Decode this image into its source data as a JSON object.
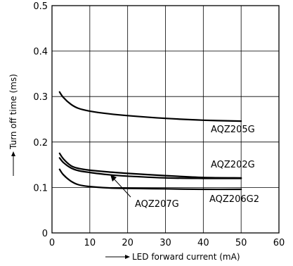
{
  "chart_data": {
    "type": "line",
    "title": "",
    "xlabel": "LED forward current (mA)",
    "ylabel": "Turn off time (ms)",
    "xlim": [
      0,
      60
    ],
    "ylim": [
      0,
      0.5
    ],
    "x_ticks": [
      "0",
      "10",
      "20",
      "30",
      "40",
      "50",
      "60"
    ],
    "y_ticks": [
      "0",
      "0.1",
      "0.2",
      "0.3",
      "0.4",
      "0.5"
    ],
    "grid": true,
    "series": [
      {
        "name": "AQZ205G",
        "x": [
          2,
          3,
          5,
          7,
          10,
          15,
          20,
          30,
          40,
          50
        ],
        "y": [
          0.31,
          0.298,
          0.283,
          0.274,
          0.268,
          0.262,
          0.258,
          0.252,
          0.248,
          0.246
        ]
      },
      {
        "name": "AQZ202G",
        "x": [
          2,
          3,
          5,
          7,
          10,
          15,
          20,
          30,
          40,
          50
        ],
        "y": [
          0.175,
          0.163,
          0.148,
          0.142,
          0.138,
          0.134,
          0.131,
          0.126,
          0.122,
          0.121
        ]
      },
      {
        "name": "AQZ207G",
        "x": [
          2,
          3,
          5,
          7,
          10,
          15,
          20,
          30,
          40,
          50
        ],
        "y": [
          0.165,
          0.155,
          0.143,
          0.137,
          0.133,
          0.128,
          0.125,
          0.121,
          0.12,
          0.12
        ]
      },
      {
        "name": "AQZ206G2",
        "x": [
          2,
          3,
          5,
          7,
          10,
          15,
          20,
          30,
          40,
          50
        ],
        "y": [
          0.14,
          0.128,
          0.114,
          0.106,
          0.102,
          0.099,
          0.098,
          0.097,
          0.096,
          0.096
        ]
      }
    ]
  }
}
